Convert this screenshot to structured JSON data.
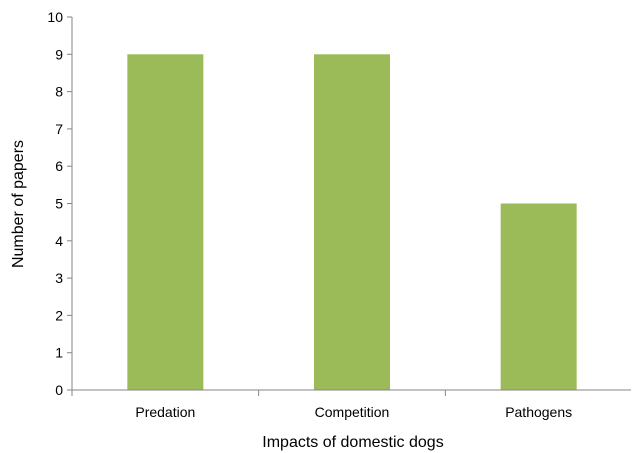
{
  "chart_data": {
    "type": "bar",
    "categories": [
      "Predation",
      "Competition",
      "Pathogens"
    ],
    "values": [
      9,
      9,
      5
    ],
    "title": "",
    "xlabel": "Impacts of domestic dogs",
    "ylabel": "Number of papers",
    "ylim": [
      0,
      10
    ],
    "yticks": [
      "0",
      "1",
      "2",
      "3",
      "4",
      "5",
      "6",
      "7",
      "8",
      "9",
      "10"
    ],
    "grid": false,
    "legend": "none",
    "bar_color": "#9bbb59",
    "axis_color": "#868686"
  }
}
